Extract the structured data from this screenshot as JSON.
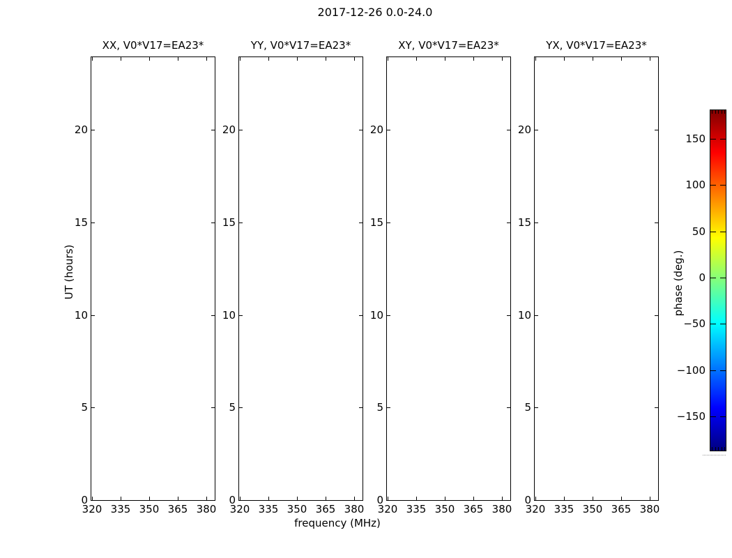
{
  "chart_data": {
    "type": "heatmap",
    "title": "2017-12-26 0.0-24.0",
    "xlabel": "frequency (MHz)",
    "ylabel": "UT (hours)",
    "panels": [
      {
        "title": "XX, V0*V17=EA23*",
        "values": []
      },
      {
        "title": "YY, V0*V17=EA23*",
        "values": []
      },
      {
        "title": "XY, V0*V17=EA23*",
        "values": []
      },
      {
        "title": "YX, V0*V17=EA23*",
        "values": []
      }
    ],
    "xticks": [
      320,
      335,
      350,
      365,
      380
    ],
    "yticks": [
      0,
      5,
      10,
      15,
      20
    ],
    "xlim": [
      319.3,
      384.7
    ],
    "ylim": [
      0,
      24
    ],
    "grid": false,
    "legend": "none",
    "colorbar": {
      "label": "phase (deg.)",
      "ticks": [
        150,
        100,
        50,
        0,
        -50,
        -100,
        -150
      ],
      "range": [
        -180,
        180
      ],
      "colormap": "jet",
      "position": "right"
    }
  },
  "colors": {
    "background": "#ffffff",
    "axes": "#000000",
    "text": "#000000"
  }
}
